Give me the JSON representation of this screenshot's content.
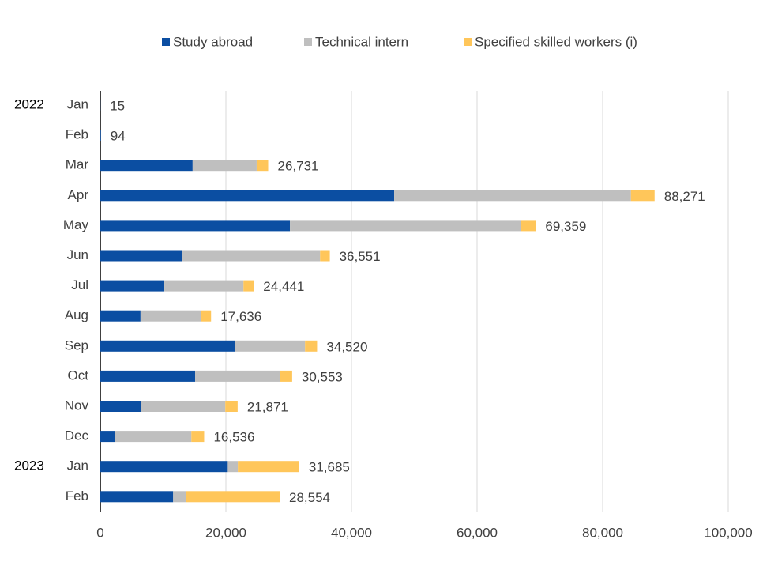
{
  "chart_data": {
    "type": "stacked-bar-horizontal",
    "categories": [
      "Jan",
      "Feb",
      "Mar",
      "Apr",
      "May",
      "Jun",
      "Jul",
      "Aug",
      "Sep",
      "Oct",
      "Nov",
      "Dec",
      "Jan",
      "Feb"
    ],
    "year_labels": [
      "2022",
      null,
      null,
      null,
      null,
      null,
      null,
      null,
      null,
      null,
      null,
      null,
      "2023",
      null
    ],
    "series": [
      {
        "name": "Study abroad",
        "color": "#0b4ea2",
        "values": [
          15,
          94,
          14700,
          46800,
          30200,
          13000,
          10200,
          6400,
          21400,
          15100,
          6500,
          2300,
          20300,
          11600
        ]
      },
      {
        "name": "Technical intern",
        "color": "#bfbfbf",
        "values": [
          0,
          0,
          10200,
          37700,
          36800,
          22000,
          12600,
          9700,
          11200,
          13500,
          13400,
          12200,
          1600,
          2000
        ]
      },
      {
        "name": "Specified skilled workers (i)",
        "color": "#ffc65a",
        "values": [
          0,
          0,
          1831,
          3771,
          2359,
          1551,
          1641,
          1536,
          1920,
          1953,
          1971,
          2036,
          9785,
          14954
        ]
      }
    ],
    "totals": {
      "values": [
        15,
        94,
        26731,
        88271,
        69359,
        36551,
        24441,
        17636,
        34520,
        30553,
        21871,
        16536,
        31685,
        28554
      ],
      "value_labels": [
        "15",
        "94",
        "26,731",
        "88,271",
        "69,359",
        "36,551",
        "24,441",
        "17,636",
        "34,520",
        "30,553",
        "21,871",
        "16,536",
        "31,685",
        "28,554"
      ]
    },
    "xlim": [
      0,
      100000
    ],
    "xticks": [
      0,
      {
        "value": 20000,
        "label": "20,000"
      },
      {
        "value": 40000,
        "label": "40,000"
      },
      {
        "value": 60000,
        "label": "60,000"
      },
      {
        "value": 80000,
        "label": "80,000"
      },
      {
        "value": 100000,
        "label": "100,000"
      }
    ],
    "grid": true,
    "legend": "top"
  }
}
